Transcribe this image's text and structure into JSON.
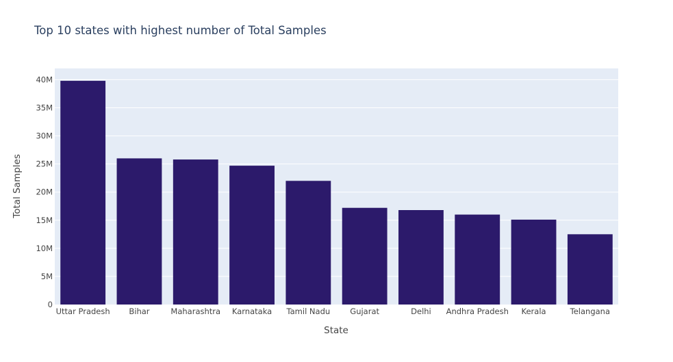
{
  "chart_data": {
    "type": "bar",
    "title": "Top 10 states with highest number of Total Samples",
    "xlabel": "State",
    "ylabel": "Total Samples",
    "categories": [
      "Uttar Pradesh",
      "Bihar",
      "Maharashtra",
      "Karnataka",
      "Tamil Nadu",
      "Gujarat",
      "Delhi",
      "Andhra Pradesh",
      "Kerala",
      "Telangana"
    ],
    "values": [
      39800000,
      26000000,
      25800000,
      24700000,
      22000000,
      17200000,
      16800000,
      16000000,
      15100000,
      12500000
    ],
    "ylim": [
      0,
      42000000
    ],
    "yticks": [
      0,
      5000000,
      10000000,
      15000000,
      20000000,
      25000000,
      30000000,
      35000000,
      40000000
    ],
    "ytick_labels": [
      "0",
      "5M",
      "10M",
      "15M",
      "20M",
      "25M",
      "30M",
      "35M",
      "40M"
    ],
    "grid": true,
    "colors": {
      "bar": "#2c1a6b",
      "plot_bg": "#e5ecf6",
      "gridline": "#ffffff",
      "paper_bg": "#ffffff"
    }
  }
}
